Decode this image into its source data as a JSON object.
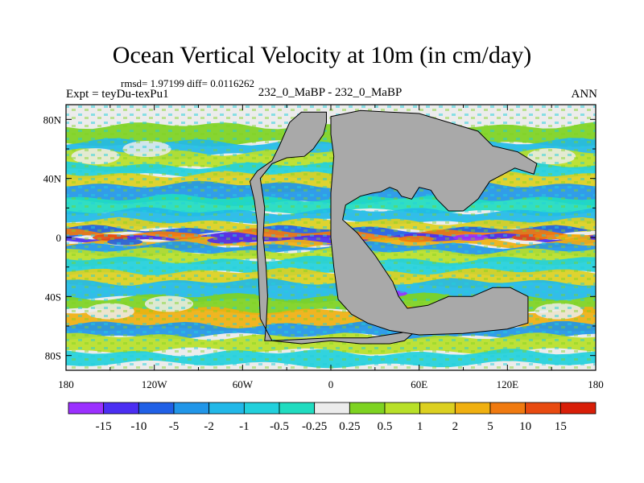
{
  "chart_data": {
    "type": "heatmap",
    "title": "Ocean Vertical Velocity at 10m (in cm/day)",
    "stats_line": "rmsd= 1.97199 diff= 0.0116262",
    "left_label": "Expt = teyDu-texPu1",
    "center_label": "232_0_MaBP - 232_0_MaBP",
    "right_label": "ANN",
    "x_axis": {
      "range": [
        -180,
        180
      ],
      "ticks": [
        {
          "value": -180,
          "label": "180"
        },
        {
          "value": -120,
          "label": "120W"
        },
        {
          "value": -60,
          "label": "60W"
        },
        {
          "value": 0,
          "label": "0"
        },
        {
          "value": 60,
          "label": "60E"
        },
        {
          "value": 120,
          "label": "120E"
        },
        {
          "value": 180,
          "label": "180"
        }
      ]
    },
    "y_axis": {
      "range": [
        -90,
        90
      ],
      "ticks": [
        {
          "value": 80,
          "label": "80N"
        },
        {
          "value": 40,
          "label": "40N"
        },
        {
          "value": 0,
          "label": "0"
        },
        {
          "value": -40,
          "label": "40S"
        },
        {
          "value": -80,
          "label": "80S"
        }
      ]
    },
    "colorbar": {
      "labels": [
        "-15",
        "-10",
        "-5",
        "-2",
        "-1",
        "-0.5",
        "-0.25",
        "0.25",
        "0.5",
        "1",
        "2",
        "5",
        "10",
        "15"
      ],
      "colors": [
        "#9b30ff",
        "#4b2ef2",
        "#2060e6",
        "#2196e8",
        "#22b8e8",
        "#22d0dc",
        "#20dcc0",
        "#ececec",
        "#7ed321",
        "#b8e028",
        "#dcd020",
        "#f0b010",
        "#f07a10",
        "#e84a10",
        "#d81e08"
      ]
    },
    "land_color": "#a9a9a9",
    "land_mask": [
      {
        "name": "america",
        "lonlat": [
          [
            -45,
            -70
          ],
          [
            -44,
            -60
          ],
          [
            -43,
            -40
          ],
          [
            -44,
            -20
          ],
          [
            -46,
            0
          ],
          [
            -45,
            20
          ],
          [
            -48,
            40
          ],
          [
            -40,
            50
          ],
          [
            -30,
            54
          ],
          [
            -18,
            55
          ],
          [
            -12,
            60
          ],
          [
            -5,
            70
          ],
          [
            -3,
            78
          ],
          [
            -3,
            85
          ],
          [
            -20,
            85
          ],
          [
            -28,
            78
          ],
          [
            -35,
            62
          ],
          [
            -40,
            52
          ],
          [
            -50,
            45
          ],
          [
            -55,
            38
          ],
          [
            -52,
            25
          ],
          [
            -50,
            10
          ],
          [
            -50,
            -10
          ],
          [
            -49,
            -30
          ],
          [
            -48,
            -55
          ],
          [
            -40,
            -70
          ],
          [
            -20,
            -72
          ],
          [
            0,
            -70
          ],
          [
            20,
            -72
          ],
          [
            40,
            -72
          ],
          [
            50,
            -70
          ],
          [
            58,
            -63
          ],
          [
            45,
            -65
          ],
          [
            25,
            -68
          ],
          [
            0,
            -68
          ],
          [
            -20,
            -69
          ],
          [
            -40,
            -70
          ]
        ]
      },
      {
        "name": "eurasia-africa",
        "lonlat": [
          [
            0,
            82
          ],
          [
            20,
            86
          ],
          [
            40,
            85
          ],
          [
            60,
            84
          ],
          [
            80,
            78
          ],
          [
            100,
            72
          ],
          [
            110,
            62
          ],
          [
            127,
            58
          ],
          [
            140,
            50
          ],
          [
            138,
            43
          ],
          [
            125,
            47
          ],
          [
            108,
            38
          ],
          [
            100,
            26
          ],
          [
            90,
            18
          ],
          [
            80,
            18
          ],
          [
            72,
            26
          ],
          [
            68,
            32
          ],
          [
            60,
            34
          ],
          [
            55,
            26
          ],
          [
            48,
            28
          ],
          [
            45,
            32
          ],
          [
            40,
            34
          ],
          [
            34,
            31
          ],
          [
            28,
            30
          ],
          [
            20,
            28
          ],
          [
            10,
            22
          ],
          [
            8,
            12
          ],
          [
            18,
            3
          ],
          [
            30,
            -12
          ],
          [
            42,
            -30
          ],
          [
            46,
            -40
          ],
          [
            52,
            -48
          ],
          [
            66,
            -46
          ],
          [
            80,
            -40
          ],
          [
            96,
            -40
          ],
          [
            110,
            -34
          ],
          [
            122,
            -34
          ],
          [
            134,
            -40
          ],
          [
            134,
            -58
          ],
          [
            120,
            -62
          ],
          [
            90,
            -65
          ],
          [
            60,
            -66
          ],
          [
            40,
            -63
          ],
          [
            25,
            -58
          ],
          [
            14,
            -52
          ],
          [
            5,
            -42
          ],
          [
            2,
            -20
          ],
          [
            0,
            0
          ],
          [
            0,
            30
          ],
          [
            2,
            55
          ],
          [
            0,
            70
          ]
        ]
      }
    ],
    "fields": [
      {
        "name": "equatorial-upwelling",
        "value_class": "5-10",
        "lat": 0,
        "lon_range": [
          -180,
          180
        ]
      },
      {
        "name": "equatorial-downwelling-flanks",
        "value_class": "-10 to -5",
        "lat": [
          -6,
          6
        ]
      },
      {
        "name": "subtropical-downwelling",
        "value_class": "-2 to -0.25",
        "lat": [
          -30,
          30
        ]
      },
      {
        "name": "subpolar-upwelling",
        "value_class": "0.5-5",
        "lat": [
          -60,
          60
        ]
      }
    ]
  }
}
